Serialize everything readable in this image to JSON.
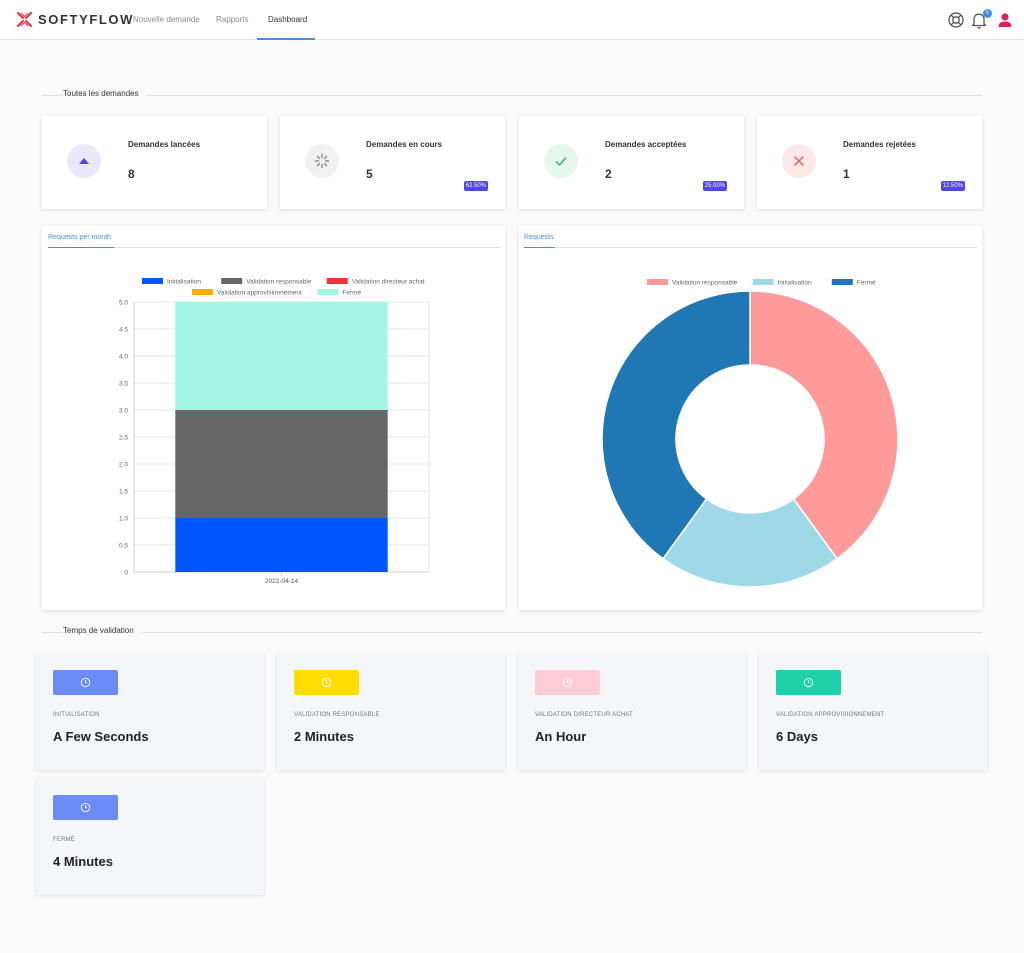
{
  "brand": {
    "name": "SOFTYFLOW",
    "color": "#e8334a"
  },
  "nav": {
    "items": [
      {
        "label": "Nouvelle demande"
      },
      {
        "label": "Rapports"
      },
      {
        "label": "Dashboard",
        "active": true
      }
    ]
  },
  "header_icons": {
    "help": "lifebuoy-icon",
    "notifications": "bell-icon",
    "notification_count": "5",
    "user": "user-icon"
  },
  "sections": {
    "all_requests": "Toutes les demandes",
    "validation_time": "Temps de validation"
  },
  "stats": [
    {
      "label": "Demandes lancées",
      "value": "8",
      "icon": "triangle-up-icon",
      "icon_bg": "#ebe8fb",
      "icon_color": "#4f46e5",
      "percent": ""
    },
    {
      "label": "Demandes en cours",
      "value": "5",
      "icon": "spinner-icon",
      "icon_bg": "#f1f1f1",
      "icon_color": "#777",
      "percent": "62.50%"
    },
    {
      "label": "Demandes acceptées",
      "value": "2",
      "icon": "check-icon",
      "icon_bg": "#e3f8ec",
      "icon_color": "#3aa76d",
      "percent": "25.00%"
    },
    {
      "label": "Demandes rejetées",
      "value": "1",
      "icon": "x-icon",
      "icon_bg": "#fde8e8",
      "icon_color": "#e05a5a",
      "percent": "12.50%"
    }
  ],
  "chart_data": [
    {
      "type": "bar",
      "tab": "Requests per month",
      "stacked": true,
      "categories": [
        "2022-04-14"
      ],
      "series": [
        {
          "name": "Initialisation",
          "values": [
            1
          ],
          "color": "#0055ff"
        },
        {
          "name": "Validation responsable",
          "values": [
            2
          ],
          "color": "#666666"
        },
        {
          "name": "Validation directeur achat",
          "values": [
            0
          ],
          "color": "#ee3333"
        },
        {
          "name": "Validation approvisionnement",
          "values": [
            0
          ],
          "color": "#ffaa00"
        },
        {
          "name": "Fermé",
          "values": [
            2
          ],
          "color": "#a2f6e4"
        }
      ],
      "yticks": [
        "0",
        "0.5",
        "1.0",
        "1.5",
        "2.0",
        "2.5",
        "3.0",
        "3.5",
        "4.0",
        "4.5",
        "5.0"
      ],
      "ylim": [
        0,
        5
      ],
      "grid": true,
      "legend": "top"
    },
    {
      "type": "pie",
      "tab": "Requests",
      "doughnut": true,
      "labels": [
        "Validation responsable",
        "Initialisation",
        "Fermé"
      ],
      "values": [
        2,
        1,
        2
      ],
      "colors": [
        "#ff9a9a",
        "#9fd8e6",
        "#1f77b4"
      ],
      "legend": "top"
    }
  ],
  "validation_times": [
    {
      "label": "INITIALISATION",
      "value": "A Few Seconds",
      "color": "#6b8cf5",
      "icon": "clock-icon"
    },
    {
      "label": "VALIDATION RESPONSABLE",
      "value": "2 Minutes",
      "color": "#ffdd00",
      "icon": "clock-icon"
    },
    {
      "label": "VALIDATION DIRECTEUR ACHAT",
      "value": "An Hour",
      "color": "#ffccd5",
      "icon": "clock-icon"
    },
    {
      "label": "VALIDATION APPROVISIONNEMENT",
      "value": "6 Days",
      "color": "#1dd1a9",
      "icon": "clock-icon"
    },
    {
      "label": "FERMÉ",
      "value": "4 Minutes",
      "color": "#6b8cf5",
      "icon": "clock-icon"
    }
  ]
}
